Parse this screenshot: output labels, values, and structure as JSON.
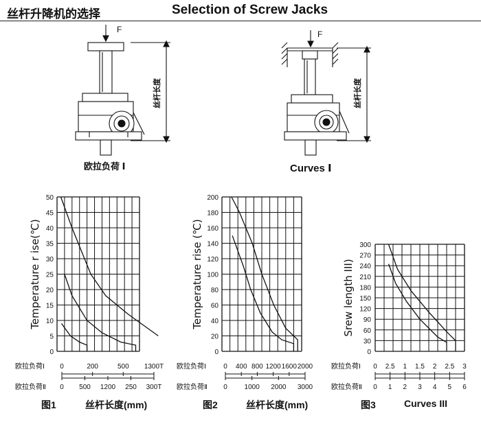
{
  "header": {
    "title_cn": "丝杆升降机的选择",
    "title_en": "Selection of Screw Jacks"
  },
  "figure_top": {
    "left_force": "F",
    "right_force": "F",
    "left_dim_label": "丝杆长度",
    "right_dim_label": "丝杆长度",
    "left_caption": "欧拉负荷 Ⅰ",
    "right_caption": "Curves Ⅰ"
  },
  "chart_data": [
    {
      "type": "line",
      "ylabel": "Temperature r ise(℃)",
      "ylim": [
        0,
        50
      ],
      "yticks": [
        "0",
        "5",
        "10",
        "15",
        "20",
        "25",
        "30",
        "35",
        "40",
        "45",
        "50"
      ],
      "grid": true,
      "euler1": {
        "label": "欧拉负荷Ⅰ",
        "ticks": [
          "0",
          "200",
          "500",
          "1300T"
        ]
      },
      "euler2": {
        "label": "欧拉负荷Ⅱ",
        "ticks": [
          "0",
          "500",
          "1200",
          "250",
          "300T"
        ]
      },
      "series": [
        {
          "x": [
            0.5,
            2.0,
            4.5,
            6.5,
            9.5,
            13.5
          ],
          "y": [
            50,
            40,
            25,
            18,
            12,
            5
          ]
        },
        {
          "x": [
            1.0,
            2.0,
            4.0,
            6.0,
            8.5,
            10.5,
            10.5
          ],
          "y": [
            25,
            18,
            10,
            6,
            3,
            2,
            0
          ]
        },
        {
          "x": [
            0.6,
            1.8,
            3.0,
            4.0,
            4.0
          ],
          "y": [
            9,
            5,
            3,
            2,
            0
          ]
        }
      ]
    },
    {
      "type": "line",
      "ylabel": "Temperature rise (℃)",
      "ylim": [
        0,
        200
      ],
      "yticks": [
        "0",
        "20",
        "40",
        "60",
        "80",
        "100",
        "120",
        "140",
        "160",
        "180",
        "200"
      ],
      "grid": true,
      "euler1": {
        "label": "欧拉负荷Ⅰ",
        "ticks": [
          "0",
          "400",
          "800",
          "1200",
          "1600",
          "2000"
        ]
      },
      "euler2": {
        "label": "欧拉负荷Ⅱ",
        "ticks": [
          "0",
          "1000",
          "2000",
          "3000"
        ]
      },
      "series": [
        {
          "x": [
            1.2,
            2.2,
            3.0,
            3.8,
            5.0,
            6.5,
            8.0,
            9.5,
            9.5
          ],
          "y": [
            200,
            180,
            160,
            140,
            100,
            60,
            30,
            15,
            0
          ]
        },
        {
          "x": [
            1.3,
            2.0,
            2.7,
            3.6,
            4.8,
            6.3,
            7.5,
            9.0,
            9.0
          ],
          "y": [
            150,
            130,
            110,
            80,
            50,
            25,
            15,
            10,
            0
          ]
        }
      ]
    },
    {
      "type": "line",
      "ylabel": "Srew length III)",
      "ylim": [
        0,
        300
      ],
      "yticks": [
        "0",
        "30",
        "60",
        "90",
        "120",
        "150",
        "180",
        "210",
        "240",
        "270",
        "300"
      ],
      "grid": true,
      "euler1": {
        "label": "欧拉负荷Ⅰ",
        "ticks": [
          "0",
          "2.5",
          "1",
          "1.5",
          "2",
          "2.5",
          "3"
        ]
      },
      "euler2": {
        "label": "欧拉负荷Ⅱ",
        "ticks": [
          "0",
          "1",
          "2",
          "3",
          "4",
          "5",
          "6"
        ]
      },
      "series": [
        {
          "x": [
            1.5,
            2.5,
            4.0,
            6.0,
            8.0,
            9.0,
            9.0
          ],
          "y": [
            300,
            230,
            170,
            110,
            55,
            30,
            0
          ]
        },
        {
          "x": [
            1.5,
            2.3,
            3.5,
            5.0,
            7.0,
            8.0,
            8.0
          ],
          "y": [
            245,
            190,
            140,
            90,
            40,
            25,
            0
          ]
        }
      ]
    }
  ],
  "captions": {
    "fig1": "图1",
    "x1": "丝杆长度(mm)",
    "fig2": "图2",
    "x2": "丝杆长度(mm)",
    "fig3": "图3",
    "x3": "Curves III"
  },
  "colors": {
    "ink": "#111111",
    "bg": "#ffffff"
  }
}
